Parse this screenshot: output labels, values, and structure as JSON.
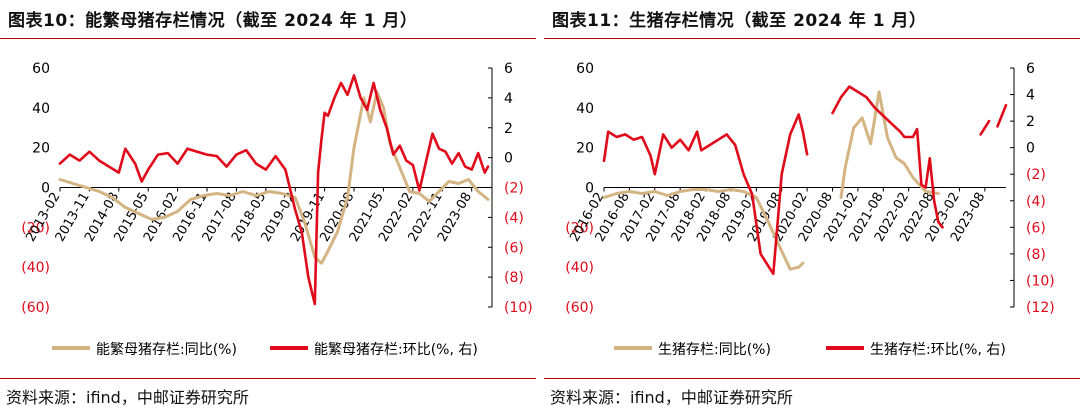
{
  "colors": {
    "yoy": "#D4B483",
    "mom": "#E00A1A",
    "rule": "#C00000",
    "axis": "#000000",
    "rightTick": "#E00A1A"
  },
  "panels": [
    {
      "title": "图表10：能繁母猪存栏情况（截至 2024 年 1 月）",
      "source": "资料来源：ifind，中邮证券研究所",
      "chart_data": {
        "type": "line",
        "x_type": "month",
        "x_range": [
          "2013-02",
          "2024-01"
        ],
        "xticks": [
          "2013-02",
          "2013-11",
          "2014-08",
          "2015-05",
          "2016-02",
          "2016-11",
          "2017-08",
          "2018-05",
          "2019-02",
          "2019-11",
          "2020-08",
          "2021-05",
          "2022-02",
          "2022-11",
          "2023-08"
        ],
        "left_axis": {
          "ticks": [
            "60",
            "40",
            "20",
            "0",
            "(20)",
            "(40)",
            "(60)"
          ],
          "ylim": [
            -60,
            60
          ]
        },
        "right_axis": {
          "ticks": [
            "6",
            "4",
            "2",
            "0",
            "(2)",
            "(4)",
            "(6)",
            "(8)",
            "(10)"
          ],
          "ylim": [
            -10,
            6
          ]
        },
        "series": [
          {
            "name": "能繁母猪存栏:同比(%)",
            "axis": "left",
            "color_key": "yoy",
            "points": [
              [
                "2013-02",
                4
              ],
              [
                "2013-06",
                2
              ],
              [
                "2013-10",
                0
              ],
              [
                "2014-02",
                -2
              ],
              [
                "2014-06",
                -5
              ],
              [
                "2014-10",
                -10
              ],
              [
                "2015-02",
                -13
              ],
              [
                "2015-06",
                -16
              ],
              [
                "2015-10",
                -15
              ],
              [
                "2016-02",
                -12
              ],
              [
                "2016-06",
                -6
              ],
              [
                "2016-10",
                -4
              ],
              [
                "2017-02",
                -3
              ],
              [
                "2017-06",
                -4
              ],
              [
                "2017-10",
                -2
              ],
              [
                "2018-02",
                -4
              ],
              [
                "2018-06",
                -2
              ],
              [
                "2018-10",
                -3
              ],
              [
                "2019-02",
                -5
              ],
              [
                "2019-05",
                -18
              ],
              [
                "2019-08",
                -35
              ],
              [
                "2019-10",
                -38
              ],
              [
                "2019-12",
                -32
              ],
              [
                "2020-03",
                -22
              ],
              [
                "2020-06",
                -5
              ],
              [
                "2020-08",
                20
              ],
              [
                "2020-11",
                45
              ],
              [
                "2021-01",
                33
              ],
              [
                "2021-03",
                48
              ],
              [
                "2021-05",
                40
              ],
              [
                "2021-07",
                22
              ],
              [
                "2021-10",
                10
              ],
              [
                "2022-01",
                -2
              ],
              [
                "2022-04",
                -3
              ],
              [
                "2022-07",
                -7
              ],
              [
                "2022-10",
                -2
              ],
              [
                "2023-01",
                3
              ],
              [
                "2023-04",
                2
              ],
              [
                "2023-07",
                4
              ],
              [
                "2023-10",
                -2
              ],
              [
                "2024-01",
                -6
              ]
            ]
          },
          {
            "name": "能繁母猪存栏:环比(%, 右)",
            "axis": "right",
            "color_key": "mom",
            "points": [
              [
                "2013-02",
                -0.4
              ],
              [
                "2013-05",
                0.2
              ],
              [
                "2013-08",
                -0.2
              ],
              [
                "2013-11",
                0.4
              ],
              [
                "2014-02",
                -0.2
              ],
              [
                "2014-05",
                -0.6
              ],
              [
                "2014-08",
                -1.0
              ],
              [
                "2014-10",
                0.6
              ],
              [
                "2015-01",
                -0.4
              ],
              [
                "2015-03",
                -1.6
              ],
              [
                "2015-05",
                -0.8
              ],
              [
                "2015-08",
                0.2
              ],
              [
                "2015-11",
                0.3
              ],
              [
                "2016-02",
                -0.4
              ],
              [
                "2016-05",
                0.6
              ],
              [
                "2016-08",
                0.4
              ],
              [
                "2016-11",
                0.2
              ],
              [
                "2017-02",
                0.1
              ],
              [
                "2017-05",
                -0.6
              ],
              [
                "2017-08",
                0.2
              ],
              [
                "2017-11",
                0.5
              ],
              [
                "2018-02",
                -0.4
              ],
              [
                "2018-05",
                -0.8
              ],
              [
                "2018-08",
                0.1
              ],
              [
                "2018-11",
                -0.8
              ],
              [
                "2019-02",
                -3.5
              ],
              [
                "2019-04",
                -5.0
              ],
              [
                "2019-06",
                -8.0
              ],
              [
                "2019-08",
                -9.8
              ],
              [
                "2019-09",
                -1.0
              ],
              [
                "2019-10",
                1.2
              ],
              [
                "2019-11",
                3.0
              ],
              [
                "2019-12",
                2.8
              ],
              [
                "2020-02",
                4.0
              ],
              [
                "2020-04",
                5.0
              ],
              [
                "2020-06",
                4.2
              ],
              [
                "2020-08",
                5.5
              ],
              [
                "2020-10",
                4.0
              ],
              [
                "2020-12",
                3.2
              ],
              [
                "2021-02",
                5.0
              ],
              [
                "2021-04",
                3.2
              ],
              [
                "2021-06",
                2.0
              ],
              [
                "2021-08",
                0.2
              ],
              [
                "2021-10",
                0.8
              ],
              [
                "2021-12",
                -0.2
              ],
              [
                "2022-02",
                -0.5
              ],
              [
                "2022-04",
                -2.2
              ],
              [
                "2022-06",
                -0.3
              ],
              [
                "2022-08",
                1.6
              ],
              [
                "2022-10",
                0.6
              ],
              [
                "2022-12",
                0.4
              ],
              [
                "2023-02",
                -0.4
              ],
              [
                "2023-04",
                0.3
              ],
              [
                "2023-06",
                -0.6
              ],
              [
                "2023-08",
                -0.8
              ],
              [
                "2023-10",
                0.3
              ],
              [
                "2023-12",
                -1.0
              ],
              [
                "2024-01",
                -0.6
              ]
            ]
          }
        ],
        "legend": [
          "能繁母猪存栏:同比(%)",
          "能繁母猪存栏:环比(%, 右)"
        ]
      }
    },
    {
      "title": "图表11：生猪存栏情况（截至 2024 年 1 月）",
      "source": "资料来源：ifind，中邮证券研究所",
      "chart_data": {
        "type": "line",
        "x_type": "month",
        "x_range": [
          "2016-02",
          "2024-01"
        ],
        "xticks": [
          "2016-02",
          "2016-08",
          "2017-02",
          "2017-08",
          "2018-02",
          "2018-08",
          "2019-02",
          "2019-08",
          "2020-02",
          "2020-08",
          "2021-02",
          "2021-08",
          "2022-02",
          "2022-08",
          "2023-02",
          "2023-08"
        ],
        "left_axis": {
          "ticks": [
            "60",
            "40",
            "20",
            "0",
            "(20)",
            "(40)",
            "(60)"
          ],
          "ylim": [
            -60,
            60
          ]
        },
        "right_axis": {
          "ticks": [
            "6",
            "4",
            "2",
            "0",
            "(2)",
            "(4)",
            "(6)",
            "(8)",
            "(10)",
            "(12)"
          ],
          "ylim": [
            -12,
            6
          ]
        },
        "series": [
          {
            "name": "生猪存栏:同比(%)",
            "axis": "left",
            "color_key": "yoy",
            "segments": [
              [
                [
                  "2016-02",
                  -5
                ],
                [
                  "2016-05",
                  -3
                ],
                [
                  "2016-08",
                  -2
                ],
                [
                  "2016-11",
                  -3
                ],
                [
                  "2017-02",
                  -2
                ],
                [
                  "2017-05",
                  -4
                ],
                [
                  "2017-08",
                  -2
                ],
                [
                  "2017-11",
                  -1
                ],
                [
                  "2018-02",
                  -1
                ],
                [
                  "2018-05",
                  -2
                ],
                [
                  "2018-08",
                  -1
                ],
                [
                  "2018-11",
                  -2
                ],
                [
                  "2019-02",
                  -5
                ],
                [
                  "2019-05",
                  -18
                ],
                [
                  "2019-08",
                  -32
                ],
                [
                  "2019-10",
                  -41
                ],
                [
                  "2019-12",
                  -40
                ],
                [
                  "2020-01",
                  -38
                ]
              ],
              [
                [
                  "2020-10",
                  -5
                ],
                [
                  "2020-11",
                  10
                ],
                [
                  "2021-01",
                  30
                ],
                [
                  "2021-03",
                  35
                ],
                [
                  "2021-05",
                  22
                ],
                [
                  "2021-07",
                  48
                ],
                [
                  "2021-09",
                  25
                ],
                [
                  "2021-11",
                  15
                ],
                [
                  "2022-01",
                  12
                ],
                [
                  "2022-03",
                  5
                ],
                [
                  "2022-06",
                  -2
                ],
                [
                  "2022-09",
                  -3
                ]
              ]
            ]
          },
          {
            "name": "生猪存栏:环比(%, 右)",
            "axis": "right",
            "color_key": "mom",
            "segments": [
              [
                [
                  "2016-02",
                  -1.0
                ],
                [
                  "2016-03",
                  1.2
                ],
                [
                  "2016-05",
                  0.8
                ],
                [
                  "2016-07",
                  1.0
                ],
                [
                  "2016-09",
                  0.6
                ],
                [
                  "2016-11",
                  0.8
                ],
                [
                  "2017-01",
                  -0.6
                ],
                [
                  "2017-02",
                  -2.0
                ],
                [
                  "2017-04",
                  1.0
                ],
                [
                  "2017-06",
                  0.0
                ],
                [
                  "2017-08",
                  0.6
                ],
                [
                  "2017-10",
                  -0.2
                ],
                [
                  "2017-12",
                  1.2
                ],
                [
                  "2018-01",
                  -0.2
                ],
                [
                  "2018-03",
                  0.2
                ],
                [
                  "2018-05",
                  0.6
                ],
                [
                  "2018-07",
                  1.0
                ],
                [
                  "2018-09",
                  0.2
                ],
                [
                  "2018-11",
                  -2.0
                ],
                [
                  "2019-01",
                  -3.5
                ],
                [
                  "2019-03",
                  -8.0
                ],
                [
                  "2019-05",
                  -9.0
                ],
                [
                  "2019-06",
                  -9.5
                ],
                [
                  "2019-08",
                  -2.0
                ],
                [
                  "2019-10",
                  1.0
                ],
                [
                  "2019-12",
                  2.5
                ],
                [
                  "2020-01",
                  1.2
                ],
                [
                  "2020-02",
                  -0.5
                ]
              ],
              [
                [
                  "2020-08",
                  2.6
                ],
                [
                  "2020-10",
                  3.8
                ],
                [
                  "2020-12",
                  4.6
                ],
                [
                  "2021-02",
                  4.2
                ],
                [
                  "2021-04",
                  3.8
                ],
                [
                  "2021-06",
                  3.0
                ],
                [
                  "2021-08",
                  2.4
                ],
                [
                  "2021-10",
                  1.8
                ],
                [
                  "2021-12",
                  1.2
                ],
                [
                  "2022-01",
                  0.8
                ],
                [
                  "2022-03",
                  0.8
                ],
                [
                  "2022-04",
                  1.4
                ],
                [
                  "2022-05",
                  -2.8
                ],
                [
                  "2022-06",
                  -3.0
                ],
                [
                  "2022-07",
                  -0.8
                ],
                [
                  "2022-08",
                  -4.0
                ],
                [
                  "2022-09",
                  -5.6
                ],
                [
                  "2022-10",
                  -6.0
                ]
              ],
              [
                [
                  "2023-07",
                  1.0
                ],
                [
                  "2023-09",
                  2.0
                ]
              ],
              [
                [
                  "2023-11",
                  1.6
                ],
                [
                  "2024-01",
                  3.2
                ]
              ]
            ]
          }
        ],
        "legend": [
          "生猪存栏:同比(%)",
          "生猪存栏:环比(%, 右)"
        ]
      }
    }
  ]
}
